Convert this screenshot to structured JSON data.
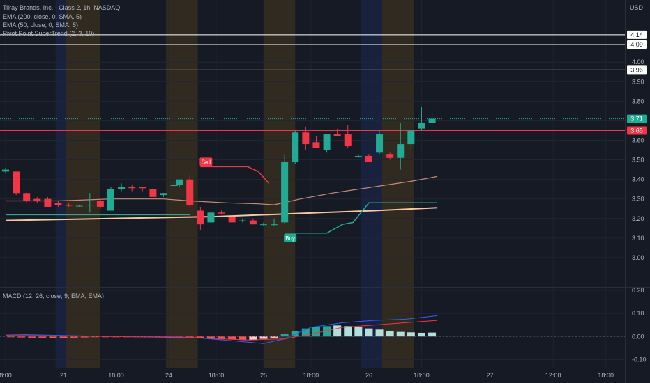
{
  "chart_data": {
    "type": "candlestick",
    "title": "Tilray Brands, Inc. - Class 2, 1h, NASDAQ",
    "currency": "USD",
    "indicators": [
      "EMA (200, close, 0, SMA, 5)",
      "EMA (50, close, 0, SMA, 5)",
      "Pivot Point SuperTrend (2, 3, 10)"
    ],
    "macd_label": "MACD (12, 26, close, 9, EMA, EMA)",
    "price_axis": {
      "range": [
        2.85,
        4.3
      ],
      "ticks": [
        "4.00",
        "3.90",
        "3.80",
        "3.70",
        "3.60",
        "3.50",
        "3.40",
        "3.30",
        "3.20",
        "3.10",
        "3.00"
      ],
      "tick_values": [
        4.0,
        3.9,
        3.8,
        3.7,
        3.6,
        3.5,
        3.4,
        3.3,
        3.2,
        3.1,
        3.0
      ]
    },
    "macd_axis": {
      "range": [
        -0.135,
        0.215
      ],
      "ticks": [
        "0.20",
        "0.10",
        "0.00",
        "-0.10"
      ],
      "tick_values": [
        0.2,
        0.1,
        0.0,
        -0.1
      ]
    },
    "x_axis": {
      "labels": [
        "8:00",
        "21",
        "18:00",
        "24",
        "18:00",
        "25",
        "18:00",
        "26",
        "18:00",
        "27",
        "12:00",
        "18:00"
      ],
      "label_index": [
        0,
        11,
        21,
        31,
        40,
        49,
        58,
        69,
        79,
        92,
        104,
        114
      ]
    },
    "horizontal_levels": [
      {
        "value": 4.14,
        "label": "4.14",
        "color": "#ffffff"
      },
      {
        "value": 4.09,
        "label": "4.09",
        "color": "#ffffff"
      },
      {
        "value": 3.96,
        "label": "3.96",
        "color": "#ffffff"
      },
      {
        "value": 3.65,
        "label": "3.65",
        "color": "#f23645"
      }
    ],
    "current_price": {
      "value": 3.71,
      "label": "3.71",
      "color": "#22ab94"
    },
    "session_bands": [
      {
        "from": 9.5,
        "to": 11.5,
        "color": "#2962ff"
      },
      {
        "from": 11.5,
        "to": 18,
        "color": "#f7a600"
      },
      {
        "from": 30.5,
        "to": 36.5,
        "color": "#f7a600"
      },
      {
        "from": 49,
        "to": 55,
        "color": "#f7a600"
      },
      {
        "from": 67.5,
        "to": 71.5,
        "color": "#2962ff"
      },
      {
        "from": 71.5,
        "to": 77.5,
        "color": "#f7a600"
      }
    ],
    "candles": [
      {
        "i": 0,
        "o": 3.44,
        "h": 3.46,
        "l": 3.43,
        "c": 3.45
      },
      {
        "i": 2,
        "o": 3.44,
        "h": 3.44,
        "l": 3.32,
        "c": 3.33
      },
      {
        "i": 4,
        "o": 3.33,
        "h": 3.34,
        "l": 3.28,
        "c": 3.29
      },
      {
        "i": 6,
        "o": 3.3,
        "h": 3.31,
        "l": 3.28,
        "c": 3.29
      },
      {
        "i": 8,
        "o": 3.3,
        "h": 3.31,
        "l": 3.26,
        "c": 3.26
      },
      {
        "i": 10,
        "o": 3.28,
        "h": 3.29,
        "l": 3.26,
        "c": 3.27
      },
      {
        "i": 12,
        "o": 3.27,
        "h": 3.28,
        "l": 3.26,
        "c": 3.265
      },
      {
        "i": 14,
        "o": 3.265,
        "h": 3.27,
        "l": 3.26,
        "c": 3.265
      },
      {
        "i": 16,
        "o": 3.27,
        "h": 3.33,
        "l": 3.23,
        "c": 3.27
      },
      {
        "i": 18,
        "o": 3.29,
        "h": 3.3,
        "l": 3.25,
        "c": 3.26
      },
      {
        "i": 20,
        "o": 3.24,
        "h": 3.36,
        "l": 3.24,
        "c": 3.35
      },
      {
        "i": 22,
        "o": 3.35,
        "h": 3.38,
        "l": 3.34,
        "c": 3.36
      },
      {
        "i": 24,
        "o": 3.36,
        "h": 3.37,
        "l": 3.34,
        "c": 3.355
      },
      {
        "i": 26,
        "o": 3.36,
        "h": 3.36,
        "l": 3.34,
        "c": 3.355
      },
      {
        "i": 28,
        "o": 3.35,
        "h": 3.36,
        "l": 3.31,
        "c": 3.31
      },
      {
        "i": 30,
        "o": 3.32,
        "h": 3.33,
        "l": 3.31,
        "c": 3.33
      },
      {
        "i": 32,
        "o": 3.37,
        "h": 3.39,
        "l": 3.36,
        "c": 3.37
      },
      {
        "i": 33,
        "o": 3.37,
        "h": 3.4,
        "l": 3.36,
        "c": 3.4
      },
      {
        "i": 35,
        "o": 3.4,
        "h": 3.42,
        "l": 3.26,
        "c": 3.27
      },
      {
        "i": 37,
        "o": 3.24,
        "h": 3.26,
        "l": 3.14,
        "c": 3.17
      },
      {
        "i": 39,
        "o": 3.18,
        "h": 3.24,
        "l": 3.17,
        "c": 3.23
      },
      {
        "i": 41,
        "o": 3.23,
        "h": 3.24,
        "l": 3.22,
        "c": 3.225
      },
      {
        "i": 43,
        "o": 3.21,
        "h": 3.22,
        "l": 3.18,
        "c": 3.18
      },
      {
        "i": 45,
        "o": 3.19,
        "h": 3.2,
        "l": 3.18,
        "c": 3.19
      },
      {
        "i": 47,
        "o": 3.19,
        "h": 3.2,
        "l": 3.17,
        "c": 3.17
      },
      {
        "i": 49,
        "o": 3.17,
        "h": 3.18,
        "l": 3.16,
        "c": 3.17
      },
      {
        "i": 51,
        "o": 3.17,
        "h": 3.2,
        "l": 3.16,
        "c": 3.17
      },
      {
        "i": 53,
        "o": 3.18,
        "h": 3.53,
        "l": 3.17,
        "c": 3.49
      },
      {
        "i": 55,
        "o": 3.49,
        "h": 3.65,
        "l": 3.48,
        "c": 3.64
      },
      {
        "i": 57,
        "o": 3.64,
        "h": 3.67,
        "l": 3.55,
        "c": 3.58
      },
      {
        "i": 59,
        "o": 3.59,
        "h": 3.62,
        "l": 3.56,
        "c": 3.56
      },
      {
        "i": 61,
        "o": 3.55,
        "h": 3.63,
        "l": 3.54,
        "c": 3.63
      },
      {
        "i": 63,
        "o": 3.63,
        "h": 3.66,
        "l": 3.62,
        "c": 3.62
      },
      {
        "i": 65,
        "o": 3.63,
        "h": 3.68,
        "l": 3.56,
        "c": 3.57
      },
      {
        "i": 67,
        "o": 3.52,
        "h": 3.53,
        "l": 3.51,
        "c": 3.52
      },
      {
        "i": 69,
        "o": 3.52,
        "h": 3.53,
        "l": 3.49,
        "c": 3.49
      },
      {
        "i": 71,
        "o": 3.54,
        "h": 3.65,
        "l": 3.53,
        "c": 3.63
      },
      {
        "i": 73,
        "o": 3.53,
        "h": 3.54,
        "l": 3.5,
        "c": 3.51
      },
      {
        "i": 75,
        "o": 3.51,
        "h": 3.69,
        "l": 3.45,
        "c": 3.58
      },
      {
        "i": 77,
        "o": 3.58,
        "h": 3.65,
        "l": 3.55,
        "c": 3.65
      },
      {
        "i": 79,
        "o": 3.66,
        "h": 3.77,
        "l": 3.65,
        "c": 3.69
      },
      {
        "i": 81,
        "o": 3.69,
        "h": 3.75,
        "l": 3.68,
        "c": 3.71
      }
    ],
    "ema200": {
      "color": "#f7c9a0",
      "points": [
        [
          0,
          3.19
        ],
        [
          20,
          3.2
        ],
        [
          40,
          3.21
        ],
        [
          60,
          3.23
        ],
        [
          70,
          3.24
        ],
        [
          82,
          3.255
        ]
      ]
    },
    "ema50": {
      "color": "#c98a7a",
      "points": [
        [
          0,
          3.29
        ],
        [
          10,
          3.29
        ],
        [
          20,
          3.3
        ],
        [
          30,
          3.3
        ],
        [
          35,
          3.29
        ],
        [
          42,
          3.28
        ],
        [
          48,
          3.275
        ],
        [
          51,
          3.27
        ],
        [
          56,
          3.3
        ],
        [
          62,
          3.33
        ],
        [
          67,
          3.35
        ],
        [
          72,
          3.37
        ],
        [
          77,
          3.39
        ],
        [
          82,
          3.415
        ]
      ]
    },
    "supertrend_down": {
      "color": "#f23645",
      "points": [
        [
          37,
          3.465
        ],
        [
          46,
          3.465
        ],
        [
          48,
          3.44
        ],
        [
          50,
          3.38
        ]
      ]
    },
    "supertrend_up_early": {
      "color": "#22ab94",
      "points": [
        [
          0,
          3.22
        ],
        [
          35,
          3.22
        ]
      ]
    },
    "supertrend_up": {
      "color": "#22ab94",
      "points": [
        [
          53,
          3.125
        ],
        [
          61,
          3.125
        ],
        [
          64,
          3.17
        ],
        [
          66,
          3.18
        ],
        [
          69,
          3.28
        ],
        [
          82,
          3.28
        ]
      ]
    },
    "signals": [
      {
        "label": "Sell",
        "i": 37,
        "value": 3.49,
        "color": "#f23645"
      },
      {
        "label": "Buy",
        "i": 53,
        "value": 3.1,
        "color": "#22ab94"
      }
    ],
    "macd_line": {
      "color": "#2962ff",
      "points": [
        [
          0,
          0.01
        ],
        [
          10,
          0.005
        ],
        [
          20,
          0.0
        ],
        [
          30,
          0.0
        ],
        [
          36,
          -0.005
        ],
        [
          44,
          -0.02
        ],
        [
          49,
          -0.03
        ],
        [
          53,
          -0.01
        ],
        [
          58,
          0.04
        ],
        [
          64,
          0.06
        ],
        [
          70,
          0.07
        ],
        [
          76,
          0.075
        ],
        [
          82,
          0.09
        ]
      ]
    },
    "signal_line": {
      "color": "#f23645",
      "points": [
        [
          0,
          0.005
        ],
        [
          20,
          0.0
        ],
        [
          36,
          -0.005
        ],
        [
          46,
          -0.015
        ],
        [
          53,
          -0.01
        ],
        [
          58,
          0.01
        ],
        [
          64,
          0.04
        ],
        [
          70,
          0.05
        ],
        [
          76,
          0.06
        ],
        [
          82,
          0.07
        ]
      ]
    },
    "histogram": [
      {
        "i": 1,
        "v": -0.003
      },
      {
        "i": 3,
        "v": -0.004
      },
      {
        "i": 5,
        "v": -0.005
      },
      {
        "i": 7,
        "v": -0.005
      },
      {
        "i": 9,
        "v": -0.006
      },
      {
        "i": 11,
        "v": -0.006
      },
      {
        "i": 13,
        "v": -0.005
      },
      {
        "i": 15,
        "v": -0.004
      },
      {
        "i": 17,
        "v": -0.003
      },
      {
        "i": 19,
        "v": -0.002
      },
      {
        "i": 21,
        "v": -0.002
      },
      {
        "i": 23,
        "v": -0.002
      },
      {
        "i": 25,
        "v": -0.002
      },
      {
        "i": 27,
        "v": -0.002
      },
      {
        "i": 29,
        "v": -0.003
      },
      {
        "i": 31,
        "v": -0.002
      },
      {
        "i": 33,
        "v": -0.002
      },
      {
        "i": 35,
        "v": -0.005
      },
      {
        "i": 37,
        "v": -0.008
      },
      {
        "i": 39,
        "v": -0.01
      },
      {
        "i": 41,
        "v": -0.012
      },
      {
        "i": 43,
        "v": -0.013
      },
      {
        "i": 45,
        "v": -0.014
      },
      {
        "i": 47,
        "v": -0.015
      },
      {
        "i": 49,
        "v": -0.01
      },
      {
        "i": 51,
        "v": -0.005
      },
      {
        "i": 53,
        "v": 0.01
      },
      {
        "i": 55,
        "v": 0.025
      },
      {
        "i": 57,
        "v": 0.035
      },
      {
        "i": 59,
        "v": 0.04
      },
      {
        "i": 61,
        "v": 0.045
      },
      {
        "i": 63,
        "v": 0.048
      },
      {
        "i": 65,
        "v": 0.045
      },
      {
        "i": 67,
        "v": 0.04
      },
      {
        "i": 69,
        "v": 0.035
      },
      {
        "i": 71,
        "v": 0.03
      },
      {
        "i": 73,
        "v": 0.025
      },
      {
        "i": 75,
        "v": 0.02
      },
      {
        "i": 77,
        "v": 0.018
      },
      {
        "i": 79,
        "v": 0.016
      },
      {
        "i": 81,
        "v": 0.017
      }
    ],
    "grid": true
  }
}
